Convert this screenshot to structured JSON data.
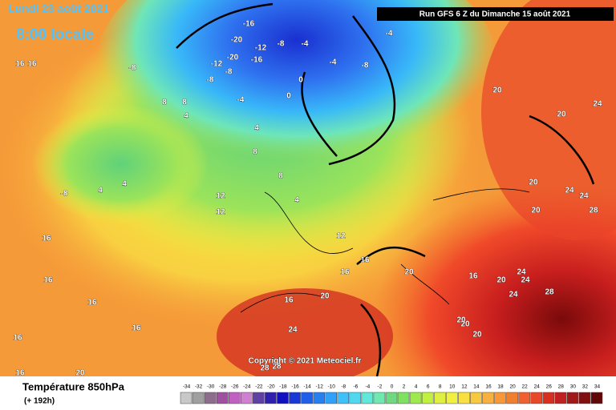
{
  "header": {
    "date": "Lundi 23 août 2021",
    "time": "8:00 locale"
  },
  "run_info": "Run GFS 6 Z du Dimanche 15 août 2021",
  "copyright": "Copyright © 2021 Meteociel.fr",
  "footer": {
    "title": "Température 850hPa",
    "range": "(+ 192h)"
  },
  "scale": {
    "values": [
      -34,
      -32,
      -30,
      -28,
      -26,
      -24,
      -22,
      -20,
      -18,
      -16,
      -14,
      -12,
      -10,
      -8,
      -6,
      -4,
      -2,
      0,
      2,
      4,
      6,
      8,
      10,
      12,
      14,
      16,
      18,
      20,
      22,
      24,
      26,
      28,
      30,
      32,
      34
    ],
    "colors": [
      "#c8c8c8",
      "#a0a0a0",
      "#8c6e8c",
      "#a050a0",
      "#c060c0",
      "#d080d0",
      "#6040a0",
      "#3020b0",
      "#1010c0",
      "#1838d8",
      "#2060e8",
      "#2880f0",
      "#30a0f8",
      "#40c0f8",
      "#50d8f0",
      "#60e8d8",
      "#70e8b0",
      "#70d880",
      "#80e060",
      "#a0e850",
      "#c0f040",
      "#e0f040",
      "#f0f040",
      "#f8e040",
      "#f8c840",
      "#f8b040",
      "#f89838",
      "#f08030",
      "#f06030",
      "#e84828",
      "#d83020",
      "#c02020",
      "#a01818",
      "#801010",
      "#600808"
    ]
  },
  "contour_labels": [
    16,
    16,
    -8,
    8,
    8,
    4,
    4,
    4,
    -8,
    12,
    12,
    8,
    8,
    4,
    12,
    16,
    16,
    20,
    20,
    16,
    24,
    28,
    28,
    16,
    20,
    24,
    24,
    24,
    28,
    20,
    20,
    20,
    20,
    20,
    24,
    20,
    24,
    24,
    28,
    20,
    16,
    16,
    16,
    16,
    16,
    16,
    20,
    -16,
    -20,
    -20,
    -8,
    -12,
    -16,
    -8,
    -4,
    -8,
    -4,
    -4,
    0,
    0,
    4,
    -4,
    -8,
    -12
  ]
}
